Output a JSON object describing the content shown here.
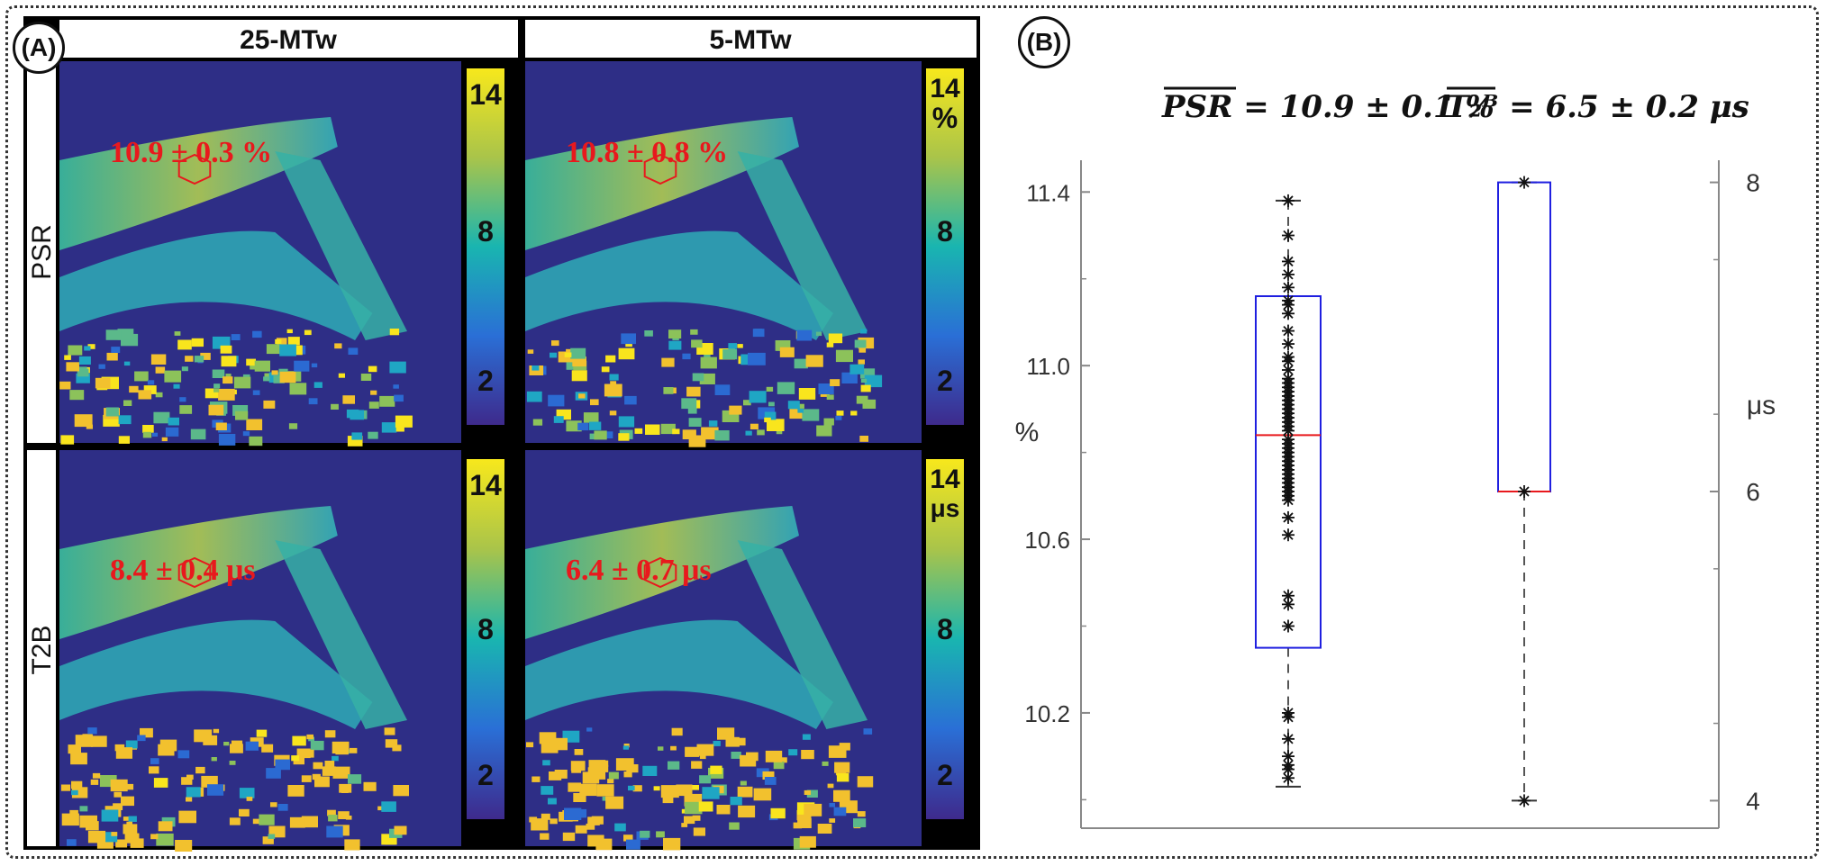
{
  "panel_a": {
    "label": "(A)",
    "columns": [
      "25-MTw",
      "5-MTw"
    ],
    "rows": [
      "PSR",
      "T2B"
    ],
    "colorbar_ticks": [
      "14",
      "8",
      "2"
    ],
    "colorbar_units": {
      "psr_5mtw": "%",
      "t2b_5mtw": "μs"
    },
    "roi_annotations": {
      "psr_25mtw": "10.9 ± 0.3 %",
      "psr_5mtw": "10.8 ± 0.8 %",
      "t2b_25mtw": "8.4 ± 0.4 μs",
      "t2b_5mtw": "6.4 ± 0.7 μs"
    },
    "colors": {
      "background": "#2e2e86",
      "annotation": "#e8191d"
    }
  },
  "panel_b": {
    "label": "(B)",
    "psr_mean_label": "PSR = 10.9 ± 0.1 %",
    "t2b_mean_label": "T₂ᴮ = 6.5 ± 0.2 μs",
    "left_axis_unit": "%",
    "right_axis_unit": "μs"
  },
  "chart_data": {
    "type": "box",
    "series": [
      {
        "name": "PSR",
        "axis": "left",
        "unit": "%",
        "min": 10.03,
        "q1": 10.35,
        "median": 10.84,
        "q3": 11.16,
        "max": 11.38,
        "points": [
          11.38,
          11.3,
          11.24,
          11.21,
          11.18,
          11.15,
          11.14,
          11.12,
          11.08,
          11.05,
          11.02,
          11.01,
          10.99,
          10.97,
          10.96,
          10.95,
          10.94,
          10.93,
          10.92,
          10.91,
          10.9,
          10.89,
          10.88,
          10.87,
          10.86,
          10.85,
          10.83,
          10.82,
          10.81,
          10.8,
          10.79,
          10.78,
          10.77,
          10.76,
          10.75,
          10.74,
          10.73,
          10.72,
          10.71,
          10.7,
          10.69,
          10.65,
          10.61,
          10.47,
          10.45,
          10.4,
          10.2,
          10.19,
          10.14,
          10.1,
          10.08,
          10.07,
          10.05
        ]
      },
      {
        "name": "T2B",
        "axis": "right",
        "unit": "μs",
        "min": 4.0,
        "q1": 6.0,
        "median": 6.0,
        "q3": 8.0,
        "max": 8.0,
        "points": [
          8.0,
          6.0,
          4.0
        ]
      }
    ],
    "left_axis": {
      "range": [
        9.98,
        11.44
      ],
      "ticks": [
        10.2,
        10.6,
        11.0,
        11.4
      ],
      "unit": "%"
    },
    "right_axis": {
      "range": [
        3.95,
        8.05
      ],
      "ticks": [
        4,
        6,
        8
      ],
      "unit": "μs"
    },
    "colors": {
      "box": "#1f1fe0",
      "median": "#e8191d",
      "points": "#111111"
    }
  }
}
